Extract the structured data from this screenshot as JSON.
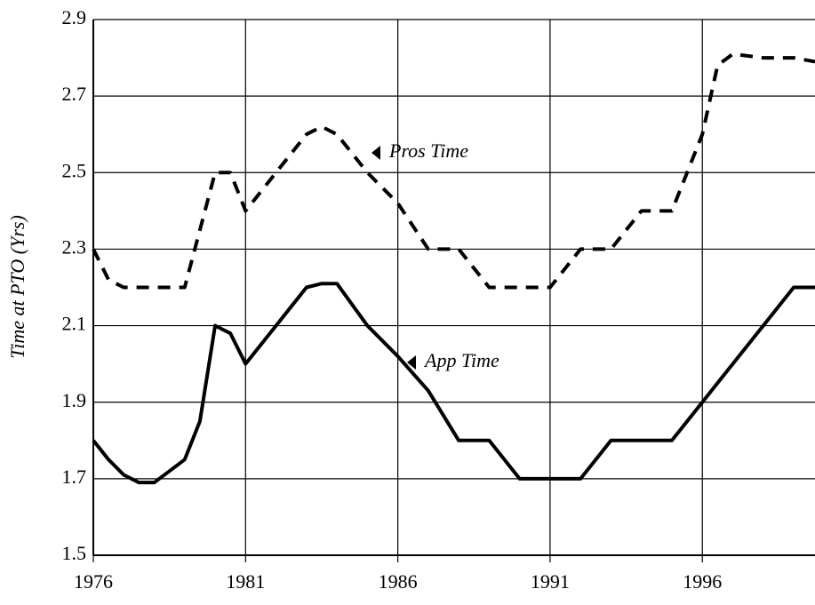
{
  "chart_data": {
    "type": "line",
    "ylabel": "Time at PTO (Yrs)",
    "x": [
      1976,
      1976.5,
      1977,
      1977.5,
      1978,
      1979,
      1979.5,
      1980,
      1980.5,
      1981,
      1982,
      1983,
      1983.5,
      1984,
      1985,
      1986,
      1987,
      1988,
      1988.5,
      1989,
      1990,
      1991,
      1992,
      1993,
      1994,
      1995,
      1996,
      1996.5,
      1997,
      1998,
      1999,
      1999.7
    ],
    "series": [
      {
        "name": "Pros Time",
        "color": "#000000",
        "dashed": true,
        "values": [
          2.3,
          2.22,
          2.2,
          2.2,
          2.2,
          2.2,
          2.35,
          2.5,
          2.5,
          2.4,
          2.5,
          2.6,
          2.62,
          2.6,
          2.5,
          2.42,
          2.3,
          2.3,
          2.25,
          2.2,
          2.2,
          2.2,
          2.3,
          2.3,
          2.4,
          2.4,
          2.6,
          2.78,
          2.81,
          2.8,
          2.8,
          2.79
        ]
      },
      {
        "name": "App Time",
        "color": "#000000",
        "dashed": false,
        "values": [
          1.8,
          1.75,
          1.71,
          1.69,
          1.69,
          1.75,
          1.85,
          2.1,
          2.08,
          2.0,
          2.1,
          2.2,
          2.21,
          2.21,
          2.1,
          2.02,
          1.93,
          1.8,
          1.8,
          1.8,
          1.7,
          1.7,
          1.7,
          1.8,
          1.8,
          1.8,
          1.9,
          1.95,
          2.0,
          2.1,
          2.2,
          2.2
        ]
      }
    ],
    "xlim": [
      1976,
      1999.7
    ],
    "xticks": [
      1976,
      1981,
      1986,
      1991,
      1996
    ],
    "ylim": [
      1.5,
      2.9
    ],
    "yticks": [
      1.5,
      1.7,
      1.9,
      2.1,
      2.3,
      2.5,
      2.7,
      2.9
    ],
    "grid": true
  }
}
